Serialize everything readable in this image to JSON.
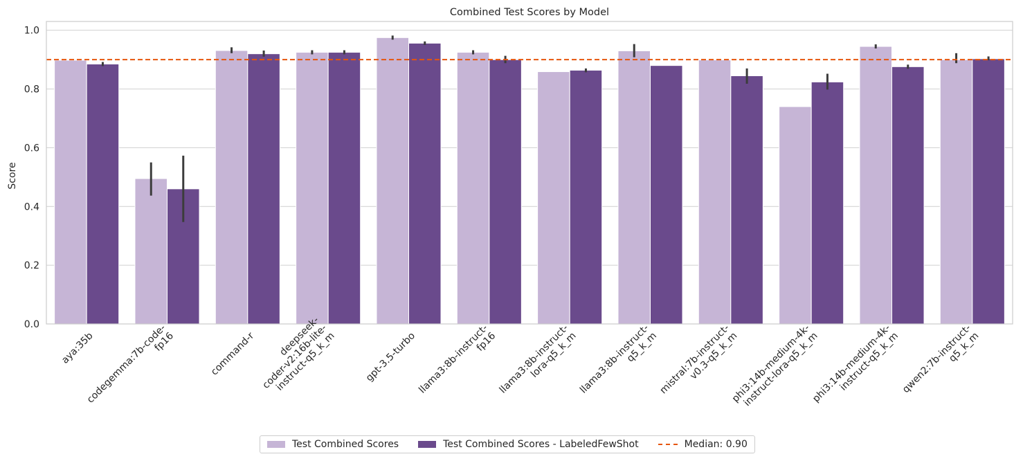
{
  "chart_data": {
    "type": "bar",
    "title": "Combined Test Scores by Model",
    "xlabel": "",
    "ylabel": "Score",
    "ylim": [
      0,
      1.03
    ],
    "yticks": [
      0.0,
      0.2,
      0.4,
      0.6,
      0.8,
      1.0
    ],
    "ytick_labels": [
      "0.0",
      "0.2",
      "0.4",
      "0.6",
      "0.8",
      "1.0"
    ],
    "grid": "y",
    "legend_position": "bottom-center",
    "categories": [
      "aya:35b",
      "codegemma:7b-code-\nfp16",
      "command-r",
      "deepseek-\ncoder-v2:16b-lite-\ninstruct-q5_k_m",
      "gpt-3.5-turbo",
      "llama3:8b-instruct-\nfp16",
      "llama3:8b-instruct-\nlora-q5_k_m",
      "llama3:8b-instruct-\nq5_k_m",
      "mistral:7b-instruct-\nv0.3-q5_k_m",
      "phi3:14b-medium-4k-\ninstruct-lora-q5_k_m",
      "phi3:14b-medium-4k-\ninstruct-q5_k_m",
      "qwen2:7b-instruct-\nq5_k_m"
    ],
    "series": [
      {
        "name": "Test Combined Scores",
        "color": "#c6b5d6",
        "values": [
          0.898,
          0.495,
          0.931,
          0.925,
          0.975,
          0.925,
          0.859,
          0.93,
          0.899,
          0.74,
          0.945,
          0.9
        ],
        "ci_low": [
          0.898,
          0.437,
          0.922,
          0.918,
          0.968,
          0.918,
          0.859,
          0.908,
          0.899,
          0.74,
          0.938,
          0.888
        ],
        "ci_high": [
          0.898,
          0.55,
          0.942,
          0.932,
          0.982,
          0.932,
          0.859,
          0.953,
          0.899,
          0.74,
          0.952,
          0.922
        ]
      },
      {
        "name": "Test Combined Scores - LabeledFewShot",
        "color": "#6a4a8c",
        "values": [
          0.885,
          0.46,
          0.92,
          0.925,
          0.956,
          0.9,
          0.864,
          0.88,
          0.845,
          0.824,
          0.876,
          0.903
        ],
        "ci_low": [
          0.878,
          0.347,
          0.91,
          0.918,
          0.95,
          0.888,
          0.857,
          0.88,
          0.818,
          0.798,
          0.869,
          0.898
        ],
        "ci_high": [
          0.892,
          0.573,
          0.931,
          0.932,
          0.962,
          0.913,
          0.87,
          0.88,
          0.87,
          0.852,
          0.883,
          0.911
        ]
      }
    ],
    "reference_line": {
      "name": "Median: 0.90",
      "value": 0.9,
      "color": "#e6550d",
      "style": "dashed"
    }
  },
  "legend": {
    "items": [
      {
        "label": "Test Combined Scores",
        "kind": "box",
        "color": "#c6b5d6"
      },
      {
        "label": "Test Combined Scores - LabeledFewShot",
        "kind": "box",
        "color": "#6a4a8c"
      },
      {
        "label": "Median: 0.90",
        "kind": "line",
        "color": "#e6550d"
      }
    ]
  }
}
